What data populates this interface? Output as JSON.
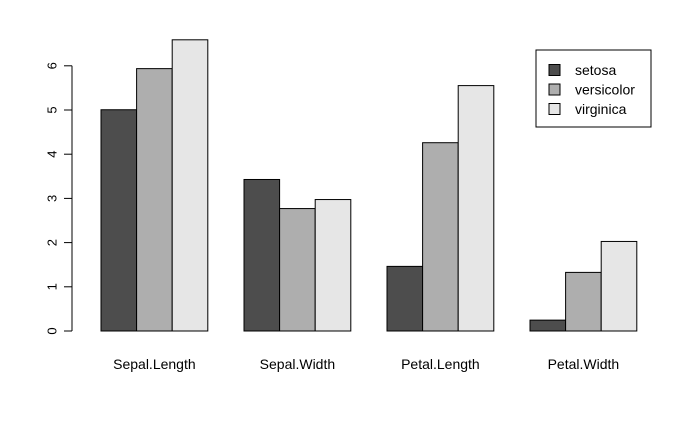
{
  "chart_data": {
    "type": "bar",
    "categories": [
      "Sepal.Length",
      "Sepal.Width",
      "Petal.Length",
      "Petal.Width"
    ],
    "series": [
      {
        "name": "setosa",
        "color": "#4d4d4d",
        "values": [
          5.006,
          3.428,
          1.462,
          0.246
        ]
      },
      {
        "name": "versicolor",
        "color": "#aeaeae",
        "values": [
          5.936,
          2.77,
          4.26,
          1.326
        ]
      },
      {
        "name": "virginica",
        "color": "#e6e6e6",
        "values": [
          6.588,
          2.974,
          5.552,
          2.026
        ]
      }
    ],
    "y_ticks": [
      "0",
      "1",
      "2",
      "3",
      "4",
      "5",
      "6"
    ],
    "ylim": [
      0,
      6.588
    ],
    "grouped": true,
    "grid": false,
    "legend_position": "top-right",
    "title": "",
    "xlabel": "",
    "ylabel": ""
  }
}
